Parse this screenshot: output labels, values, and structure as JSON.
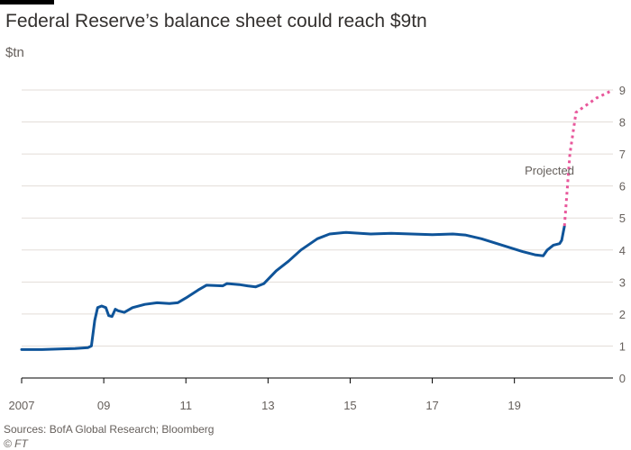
{
  "header": {
    "title": "Federal Reserve’s balance sheet could reach $9tn",
    "unit": "$tn"
  },
  "footer": {
    "source": "Sources: BofA Global Research; Bloomberg",
    "credit": "© FT"
  },
  "chart_data": {
    "type": "line",
    "title": "Federal Reserve’s balance sheet could reach $9tn",
    "ylabel": "$tn",
    "xlabel": "",
    "xlim": [
      2007,
      2021.4
    ],
    "ylim": [
      0,
      9
    ],
    "y_ticks": [
      0,
      1,
      2,
      3,
      4,
      5,
      6,
      7,
      8,
      9
    ],
    "x_ticks": [
      {
        "value": 2007,
        "label": "2007"
      },
      {
        "value": 2009,
        "label": "09"
      },
      {
        "value": 2011,
        "label": "11"
      },
      {
        "value": 2013,
        "label": "13"
      },
      {
        "value": 2015,
        "label": "15"
      },
      {
        "value": 2017,
        "label": "17"
      },
      {
        "value": 2019,
        "label": "19"
      }
    ],
    "grid": true,
    "y_axis_side": "right",
    "series": [
      {
        "color": "#0f5499",
        "style": "solid",
        "points": [
          [
            2007.0,
            0.89
          ],
          [
            2007.5,
            0.89
          ],
          [
            2008.0,
            0.91
          ],
          [
            2008.3,
            0.92
          ],
          [
            2008.62,
            0.95
          ],
          [
            2008.7,
            1.0
          ],
          [
            2008.78,
            1.8
          ],
          [
            2008.85,
            2.2
          ],
          [
            2008.95,
            2.25
          ],
          [
            2009.05,
            2.2
          ],
          [
            2009.12,
            1.95
          ],
          [
            2009.2,
            1.92
          ],
          [
            2009.28,
            2.15
          ],
          [
            2009.35,
            2.1
          ],
          [
            2009.5,
            2.05
          ],
          [
            2009.7,
            2.2
          ],
          [
            2010.0,
            2.3
          ],
          [
            2010.3,
            2.35
          ],
          [
            2010.6,
            2.33
          ],
          [
            2010.8,
            2.35
          ],
          [
            2011.0,
            2.5
          ],
          [
            2011.3,
            2.75
          ],
          [
            2011.5,
            2.9
          ],
          [
            2011.9,
            2.88
          ],
          [
            2012.0,
            2.95
          ],
          [
            2012.3,
            2.92
          ],
          [
            2012.5,
            2.88
          ],
          [
            2012.7,
            2.85
          ],
          [
            2012.9,
            2.95
          ],
          [
            2013.2,
            3.35
          ],
          [
            2013.5,
            3.65
          ],
          [
            2013.8,
            4.0
          ],
          [
            2014.2,
            4.35
          ],
          [
            2014.5,
            4.5
          ],
          [
            2014.9,
            4.55
          ],
          [
            2015.5,
            4.5
          ],
          [
            2016.0,
            4.52
          ],
          [
            2016.5,
            4.5
          ],
          [
            2017.0,
            4.48
          ],
          [
            2017.5,
            4.5
          ],
          [
            2017.8,
            4.47
          ],
          [
            2018.2,
            4.35
          ],
          [
            2018.7,
            4.15
          ],
          [
            2019.2,
            3.95
          ],
          [
            2019.5,
            3.85
          ],
          [
            2019.7,
            3.82
          ],
          [
            2019.8,
            4.0
          ],
          [
            2019.95,
            4.15
          ],
          [
            2020.1,
            4.2
          ],
          [
            2020.15,
            4.3
          ],
          [
            2020.22,
            4.75
          ]
        ]
      },
      {
        "color": "#e8579b",
        "style": "dashed",
        "label": "Projected",
        "points": [
          [
            2020.22,
            4.75
          ],
          [
            2020.35,
            7.0
          ],
          [
            2020.5,
            8.3
          ],
          [
            2021.0,
            8.75
          ],
          [
            2021.4,
            9.0
          ]
        ]
      }
    ]
  }
}
